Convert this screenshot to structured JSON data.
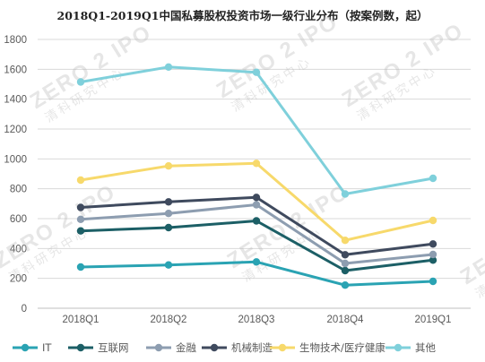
{
  "title": "2018Q1-2019Q1中国私募股权投资市场一级行业分布（按案例数，起）",
  "watermark": {
    "logo": "ZERO 2 IPO",
    "cn": "清科研究中心"
  },
  "colors": {
    "IT": "#2aa3b3",
    "互联网": "#1c5f66",
    "金融": "#8d9db0",
    "机械制造": "#3f4a5e",
    "生物技术/医疗健康": "#f7d96b",
    "其他": "#7fd0db",
    "grid": "#d9d9d9",
    "axis": "#bfbfbf",
    "tick": "#595959"
  },
  "chart_data": {
    "type": "line",
    "title": "2018Q1-2019Q1中国私募股权投资市场一级行业分布（按案例数，起）",
    "categories": [
      "2018Q1",
      "2018Q2",
      "2018Q3",
      "2018Q4",
      "2019Q1"
    ],
    "ylim": [
      0,
      1800
    ],
    "yticks": [
      0,
      200,
      400,
      600,
      800,
      1000,
      1200,
      1400,
      1600,
      1800
    ],
    "grid": true,
    "legend": "bottom",
    "series": [
      {
        "name": "IT",
        "values": [
          276,
          290,
          310,
          155,
          180
        ]
      },
      {
        "name": "互联网",
        "values": [
          518,
          540,
          585,
          252,
          322
        ]
      },
      {
        "name": "金融",
        "values": [
          595,
          635,
          693,
          300,
          360
        ]
      },
      {
        "name": "机械制造",
        "values": [
          675,
          712,
          742,
          358,
          430
        ]
      },
      {
        "name": "生物技术/医疗健康",
        "values": [
          858,
          953,
          970,
          455,
          588
        ]
      },
      {
        "name": "其他",
        "values": [
          1515,
          1615,
          1580,
          765,
          870
        ]
      }
    ]
  }
}
